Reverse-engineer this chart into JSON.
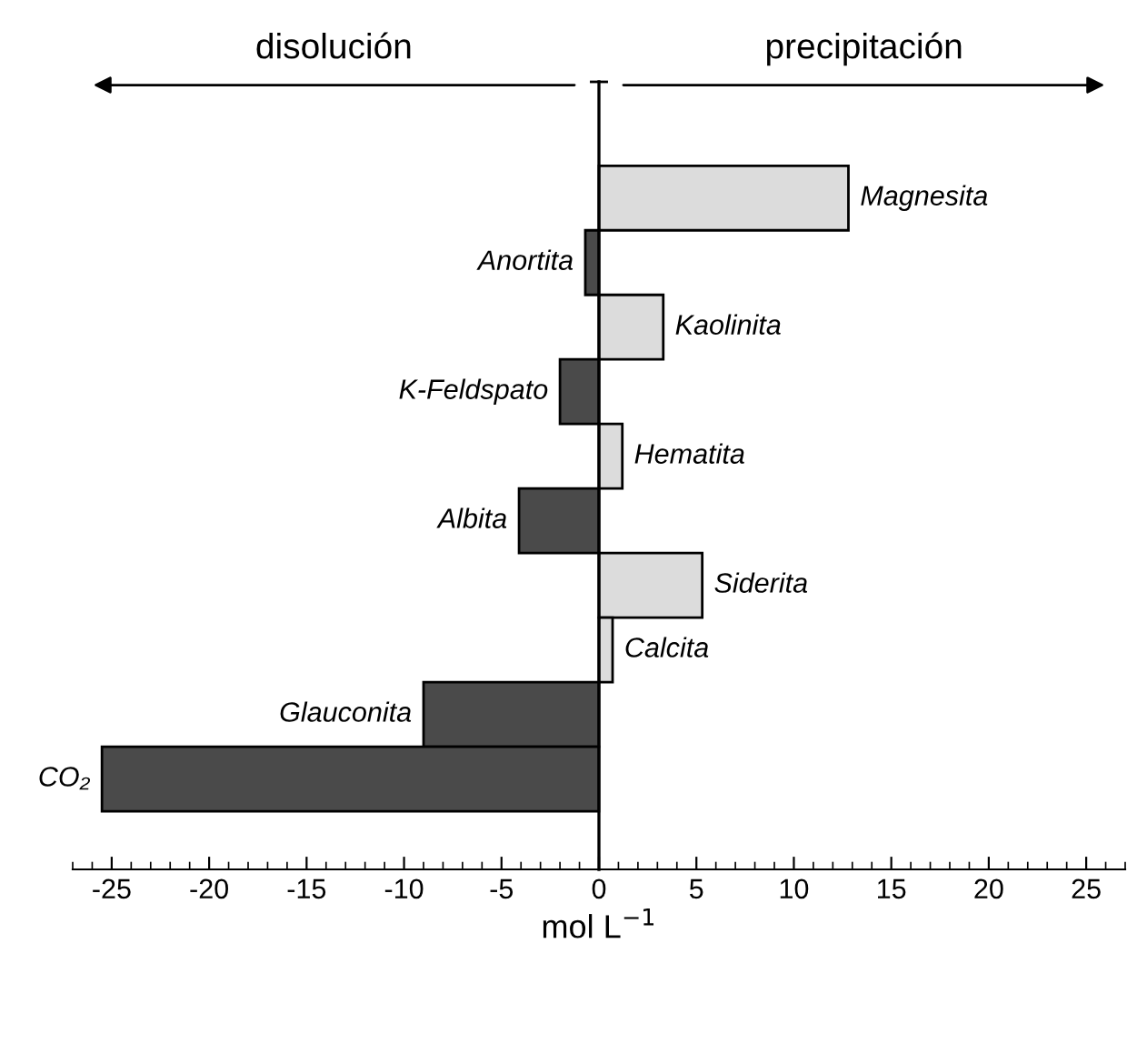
{
  "chart_data": {
    "type": "bar",
    "orientation": "horizontal",
    "categories": [
      "Magnesita",
      "Anortita",
      "Kaolinita",
      "K-Feldspato",
      "Hematita",
      "Albita",
      "Siderita",
      "Calcita",
      "Glauconita",
      "CO₂"
    ],
    "values": [
      12.8,
      -0.7,
      3.3,
      -2.0,
      1.2,
      -4.1,
      5.3,
      0.7,
      -9.0,
      -25.5
    ],
    "colors": [
      "#dcdcdc",
      "#4a4a4a",
      "#dcdcdc",
      "#4a4a4a",
      "#dcdcdc",
      "#4a4a4a",
      "#dcdcdc",
      "#dcdcdc",
      "#4a4a4a",
      "#4a4a4a"
    ],
    "xlabel": "mol L$^{−1}$",
    "xlim": [
      -27,
      27
    ],
    "xticks": [
      -25,
      -20,
      -15,
      -10,
      -5,
      0,
      5,
      10,
      15,
      20,
      25
    ],
    "annotations": [
      "disolución",
      "precipitación"
    ],
    "grid": false,
    "legend": false
  }
}
